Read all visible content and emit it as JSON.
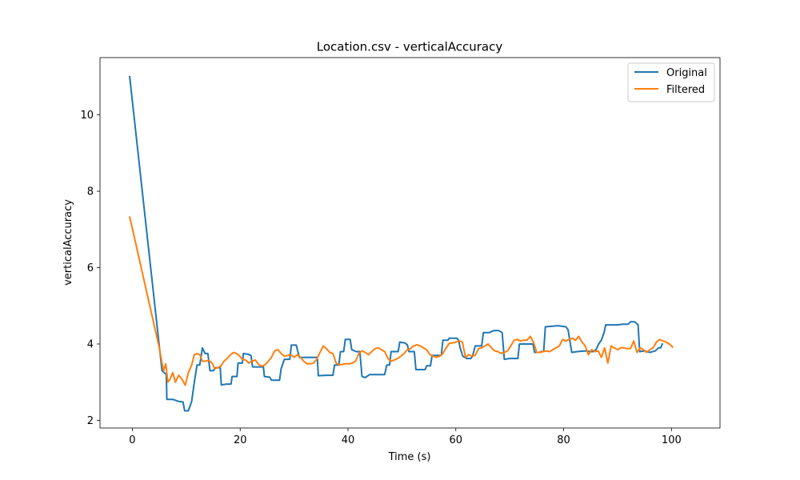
{
  "chart_data": {
    "type": "line",
    "title": "Location.csv - verticalAccuracy",
    "xlabel": "Time (s)",
    "ylabel": "verticalAccuracy",
    "xlim": [
      -6,
      109
    ],
    "ylim": [
      1.8,
      11.5
    ],
    "xticks": [
      0,
      20,
      40,
      60,
      80,
      100
    ],
    "yticks": [
      2,
      4,
      6,
      8,
      10
    ],
    "grid": false,
    "legend_position": "top-right",
    "series": [
      {
        "name": "Original",
        "color": "#1f77b4",
        "points": [
          [
            -0.5,
            11.0
          ],
          [
            5.5,
            3.3
          ],
          [
            6.3,
            3.2
          ],
          [
            6.4,
            2.55
          ],
          [
            7.5,
            2.55
          ],
          [
            8.5,
            2.5
          ],
          [
            9.4,
            2.48
          ],
          [
            9.7,
            2.25
          ],
          [
            10.4,
            2.25
          ],
          [
            11.0,
            2.5
          ],
          [
            11.5,
            3.0
          ],
          [
            12.0,
            3.45
          ],
          [
            12.5,
            3.45
          ],
          [
            13.0,
            3.9
          ],
          [
            13.5,
            3.75
          ],
          [
            14.0,
            3.75
          ],
          [
            14.4,
            3.3
          ],
          [
            15.0,
            3.3
          ],
          [
            15.5,
            3.38
          ],
          [
            16.3,
            3.38
          ],
          [
            16.5,
            2.93
          ],
          [
            17.5,
            2.95
          ],
          [
            18.3,
            2.95
          ],
          [
            18.5,
            3.15
          ],
          [
            19.4,
            3.15
          ],
          [
            19.6,
            3.5
          ],
          [
            20.4,
            3.5
          ],
          [
            20.6,
            3.75
          ],
          [
            21.5,
            3.73
          ],
          [
            22.0,
            3.7
          ],
          [
            22.3,
            3.4
          ],
          [
            23.5,
            3.4
          ],
          [
            24.3,
            3.4
          ],
          [
            24.5,
            3.15
          ],
          [
            25.5,
            3.13
          ],
          [
            25.8,
            3.05
          ],
          [
            27.3,
            3.05
          ],
          [
            27.6,
            3.35
          ],
          [
            28.2,
            3.6
          ],
          [
            29.2,
            3.6
          ],
          [
            29.5,
            3.97
          ],
          [
            30.4,
            3.97
          ],
          [
            30.6,
            3.85
          ],
          [
            31.0,
            3.65
          ],
          [
            32.3,
            3.65
          ],
          [
            33.0,
            3.65
          ],
          [
            34.3,
            3.65
          ],
          [
            34.5,
            3.17
          ],
          [
            36.0,
            3.18
          ],
          [
            37.2,
            3.18
          ],
          [
            37.5,
            3.45
          ],
          [
            38.3,
            3.45
          ],
          [
            38.6,
            3.8
          ],
          [
            39.2,
            3.8
          ],
          [
            39.5,
            4.12
          ],
          [
            40.4,
            4.12
          ],
          [
            40.7,
            3.85
          ],
          [
            41.5,
            3.8
          ],
          [
            42.2,
            3.8
          ],
          [
            42.6,
            3.15
          ],
          [
            43.2,
            3.12
          ],
          [
            44.0,
            3.2
          ],
          [
            46.8,
            3.2
          ],
          [
            47.2,
            3.45
          ],
          [
            47.7,
            3.45
          ],
          [
            48.0,
            3.8
          ],
          [
            49.3,
            3.8
          ],
          [
            49.6,
            4.05
          ],
          [
            50.5,
            4.03
          ],
          [
            51.0,
            3.98
          ],
          [
            51.3,
            3.8
          ],
          [
            52.3,
            3.8
          ],
          [
            52.6,
            3.33
          ],
          [
            54.3,
            3.33
          ],
          [
            54.6,
            3.43
          ],
          [
            55.3,
            3.43
          ],
          [
            55.6,
            3.7
          ],
          [
            56.6,
            3.7
          ],
          [
            57.3,
            3.7
          ],
          [
            57.6,
            4.1
          ],
          [
            58.5,
            4.1
          ],
          [
            58.8,
            4.15
          ],
          [
            60.2,
            4.15
          ],
          [
            60.5,
            4.1
          ],
          [
            60.8,
            3.9
          ],
          [
            61.3,
            3.68
          ],
          [
            62.0,
            3.62
          ],
          [
            62.8,
            3.62
          ],
          [
            63.1,
            3.68
          ],
          [
            63.6,
            3.95
          ],
          [
            64.8,
            3.95
          ],
          [
            65.1,
            4.3
          ],
          [
            66.2,
            4.3
          ],
          [
            67.0,
            4.35
          ],
          [
            68.0,
            4.35
          ],
          [
            68.6,
            4.3
          ],
          [
            69.0,
            3.6
          ],
          [
            70.0,
            3.62
          ],
          [
            71.5,
            3.62
          ],
          [
            71.8,
            4.0
          ],
          [
            74.3,
            4.0
          ],
          [
            74.6,
            3.78
          ],
          [
            75.5,
            3.78
          ],
          [
            75.8,
            3.8
          ],
          [
            76.3,
            3.8
          ],
          [
            76.6,
            4.45
          ],
          [
            79.0,
            4.48
          ],
          [
            80.4,
            4.45
          ],
          [
            80.8,
            4.38
          ],
          [
            81.5,
            3.78
          ],
          [
            82.5,
            3.8
          ],
          [
            84.0,
            3.82
          ],
          [
            85.0,
            3.8
          ],
          [
            85.5,
            3.8
          ],
          [
            86.0,
            3.85
          ],
          [
            86.5,
            4.0
          ],
          [
            87.0,
            4.1
          ],
          [
            87.5,
            4.3
          ],
          [
            87.8,
            4.5
          ],
          [
            90.0,
            4.5
          ],
          [
            91.0,
            4.52
          ],
          [
            92.0,
            4.52
          ],
          [
            92.4,
            4.58
          ],
          [
            93.2,
            4.58
          ],
          [
            93.8,
            4.5
          ],
          [
            94.1,
            3.8
          ],
          [
            95.0,
            3.82
          ],
          [
            96.0,
            3.78
          ],
          [
            97.0,
            3.82
          ],
          [
            97.6,
            3.9
          ],
          [
            98.0,
            3.9
          ],
          [
            98.3,
            4.0
          ]
        ]
      },
      {
        "name": "Filtered",
        "color": "#ff7f0e",
        "points": [
          [
            -0.5,
            7.32
          ],
          [
            -0.2,
            7.15
          ],
          [
            5.0,
            3.9
          ],
          [
            5.5,
            3.5
          ],
          [
            5.8,
            3.3
          ],
          [
            6.2,
            3.48
          ],
          [
            6.6,
            3.0
          ],
          [
            7.0,
            3.08
          ],
          [
            7.5,
            3.25
          ],
          [
            8.0,
            3.0
          ],
          [
            8.6,
            3.18
          ],
          [
            9.2,
            3.08
          ],
          [
            9.8,
            2.92
          ],
          [
            10.4,
            3.25
          ],
          [
            11.0,
            3.45
          ],
          [
            11.5,
            3.72
          ],
          [
            12.0,
            3.75
          ],
          [
            12.5,
            3.72
          ],
          [
            13.0,
            3.55
          ],
          [
            13.6,
            3.55
          ],
          [
            14.2,
            3.57
          ],
          [
            14.8,
            3.5
          ],
          [
            15.3,
            3.35
          ],
          [
            15.8,
            3.38
          ],
          [
            16.4,
            3.42
          ],
          [
            17.0,
            3.55
          ],
          [
            17.6,
            3.62
          ],
          [
            18.2,
            3.72
          ],
          [
            18.8,
            3.78
          ],
          [
            19.3,
            3.75
          ],
          [
            19.8,
            3.7
          ],
          [
            20.4,
            3.6
          ],
          [
            21.0,
            3.58
          ],
          [
            21.6,
            3.5
          ],
          [
            22.2,
            3.55
          ],
          [
            22.8,
            3.58
          ],
          [
            23.4,
            3.47
          ],
          [
            24.0,
            3.42
          ],
          [
            24.6,
            3.45
          ],
          [
            25.2,
            3.55
          ],
          [
            25.8,
            3.65
          ],
          [
            26.4,
            3.82
          ],
          [
            27.0,
            3.85
          ],
          [
            27.6,
            3.75
          ],
          [
            28.2,
            3.68
          ],
          [
            28.8,
            3.7
          ],
          [
            29.4,
            3.72
          ],
          [
            30.0,
            3.65
          ],
          [
            30.6,
            3.72
          ],
          [
            31.2,
            3.65
          ],
          [
            31.8,
            3.55
          ],
          [
            32.4,
            3.48
          ],
          [
            33.0,
            3.48
          ],
          [
            33.6,
            3.5
          ],
          [
            34.2,
            3.6
          ],
          [
            34.8,
            3.78
          ],
          [
            35.4,
            3.95
          ],
          [
            36.0,
            3.88
          ],
          [
            36.6,
            3.78
          ],
          [
            37.2,
            3.75
          ],
          [
            37.8,
            3.5
          ],
          [
            38.4,
            3.45
          ],
          [
            39.0,
            3.47
          ],
          [
            39.6,
            3.48
          ],
          [
            40.2,
            3.48
          ],
          [
            40.8,
            3.5
          ],
          [
            41.4,
            3.55
          ],
          [
            42.0,
            3.75
          ],
          [
            42.6,
            3.82
          ],
          [
            43.2,
            3.78
          ],
          [
            43.8,
            3.72
          ],
          [
            44.4,
            3.8
          ],
          [
            45.0,
            3.88
          ],
          [
            45.6,
            3.9
          ],
          [
            46.2,
            3.85
          ],
          [
            46.8,
            3.8
          ],
          [
            47.4,
            3.62
          ],
          [
            48.0,
            3.55
          ],
          [
            48.6,
            3.58
          ],
          [
            49.2,
            3.62
          ],
          [
            49.8,
            3.68
          ],
          [
            50.4,
            3.75
          ],
          [
            51.0,
            3.85
          ],
          [
            51.6,
            3.88
          ],
          [
            52.2,
            3.95
          ],
          [
            52.8,
            3.98
          ],
          [
            53.4,
            3.95
          ],
          [
            54.0,
            3.9
          ],
          [
            54.6,
            3.85
          ],
          [
            55.2,
            3.72
          ],
          [
            55.8,
            3.68
          ],
          [
            56.4,
            3.65
          ],
          [
            57.0,
            3.68
          ],
          [
            57.6,
            3.75
          ],
          [
            58.2,
            3.9
          ],
          [
            58.8,
            4.02
          ],
          [
            59.4,
            4.03
          ],
          [
            60.0,
            4.05
          ],
          [
            60.6,
            4.08
          ],
          [
            61.2,
            4.05
          ],
          [
            61.8,
            3.65
          ],
          [
            62.4,
            3.72
          ],
          [
            63.0,
            3.68
          ],
          [
            63.6,
            3.7
          ],
          [
            64.2,
            3.88
          ],
          [
            64.8,
            3.9
          ],
          [
            65.4,
            3.95
          ],
          [
            66.0,
            4.0
          ],
          [
            66.6,
            3.9
          ],
          [
            67.2,
            3.82
          ],
          [
            67.8,
            3.8
          ],
          [
            68.4,
            3.75
          ],
          [
            69.0,
            3.78
          ],
          [
            69.6,
            3.82
          ],
          [
            70.2,
            3.95
          ],
          [
            70.8,
            4.1
          ],
          [
            71.4,
            4.12
          ],
          [
            72.0,
            4.08
          ],
          [
            72.6,
            4.1
          ],
          [
            73.2,
            4.1
          ],
          [
            73.8,
            4.2
          ],
          [
            74.4,
            4.05
          ],
          [
            75.0,
            3.78
          ],
          [
            75.6,
            3.78
          ],
          [
            76.2,
            3.8
          ],
          [
            76.8,
            3.82
          ],
          [
            77.4,
            3.8
          ],
          [
            78.0,
            3.85
          ],
          [
            78.6,
            3.9
          ],
          [
            79.2,
            3.95
          ],
          [
            79.8,
            4.12
          ],
          [
            80.4,
            4.08
          ],
          [
            81.0,
            4.12
          ],
          [
            81.6,
            4.15
          ],
          [
            82.2,
            4.1
          ],
          [
            82.8,
            4.2
          ],
          [
            83.4,
            4.05
          ],
          [
            84.0,
            3.95
          ],
          [
            84.6,
            3.72
          ],
          [
            85.2,
            3.85
          ],
          [
            85.8,
            3.8
          ],
          [
            86.4,
            3.82
          ],
          [
            87.0,
            3.65
          ],
          [
            87.6,
            3.9
          ],
          [
            88.2,
            3.5
          ],
          [
            88.8,
            3.95
          ],
          [
            89.4,
            3.9
          ],
          [
            90.0,
            3.85
          ],
          [
            90.6,
            3.9
          ],
          [
            91.2,
            3.9
          ],
          [
            91.8,
            3.88
          ],
          [
            92.4,
            3.88
          ],
          [
            93.0,
            4.08
          ],
          [
            93.6,
            3.78
          ],
          [
            94.2,
            3.9
          ],
          [
            94.8,
            3.85
          ],
          [
            95.4,
            3.78
          ],
          [
            96.0,
            3.85
          ],
          [
            96.6,
            3.9
          ],
          [
            97.2,
            4.05
          ],
          [
            97.8,
            4.12
          ],
          [
            98.4,
            4.08
          ],
          [
            99.0,
            4.05
          ],
          [
            99.6,
            4.0
          ],
          [
            100.2,
            3.92
          ]
        ]
      }
    ]
  }
}
